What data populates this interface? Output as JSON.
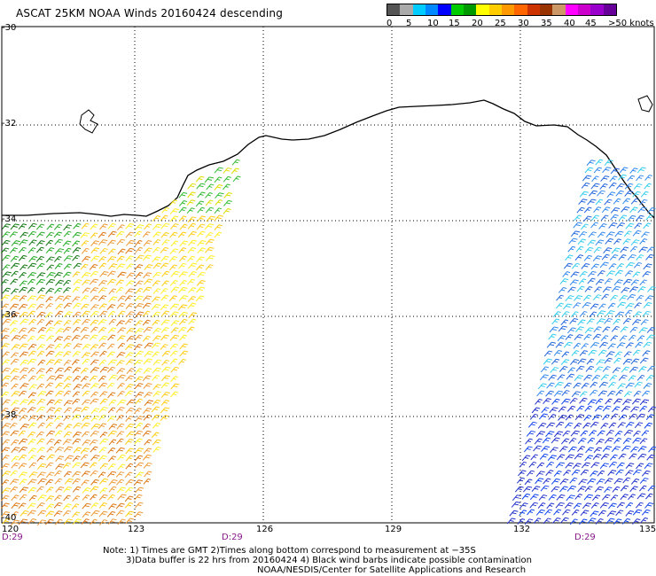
{
  "title": "ASCAT 25KM NOAA Winds 20160424 descending",
  "legend": {
    "colors": [
      "#555555",
      "#aaaaaa",
      "#00ccff",
      "#0088ff",
      "#0000ff",
      "#00cc00",
      "#009900",
      "#ffff00",
      "#ffcc00",
      "#ff9900",
      "#ff6600",
      "#cc3300",
      "#993300",
      "#cc9966",
      "#ff00ff",
      "#cc00cc",
      "#9900cc",
      "#660099"
    ],
    "labels": [
      "0",
      "5",
      "10",
      "15",
      "20",
      "25",
      "30",
      "35",
      "40",
      "45",
      ">50 knots"
    ]
  },
  "axes": {
    "lat_labels": [
      "-30",
      "-32",
      "-34",
      "-36",
      "-38",
      "-40"
    ],
    "lon_labels": [
      "120",
      "123",
      "126",
      "129",
      "132",
      "135"
    ]
  },
  "time_labels": [
    "D:29",
    "D:29",
    "D:29"
  ],
  "notes": [
    "Note: 1) Times are GMT 2)Times along bottom correspond to measurement at −35S",
    "3)Data buffer is 22 hrs from 20160424 4) Black wind barbs indicate possible contamination",
    "NOAA/NESDIS/Center for Satellite Applications and Research"
  ]
}
